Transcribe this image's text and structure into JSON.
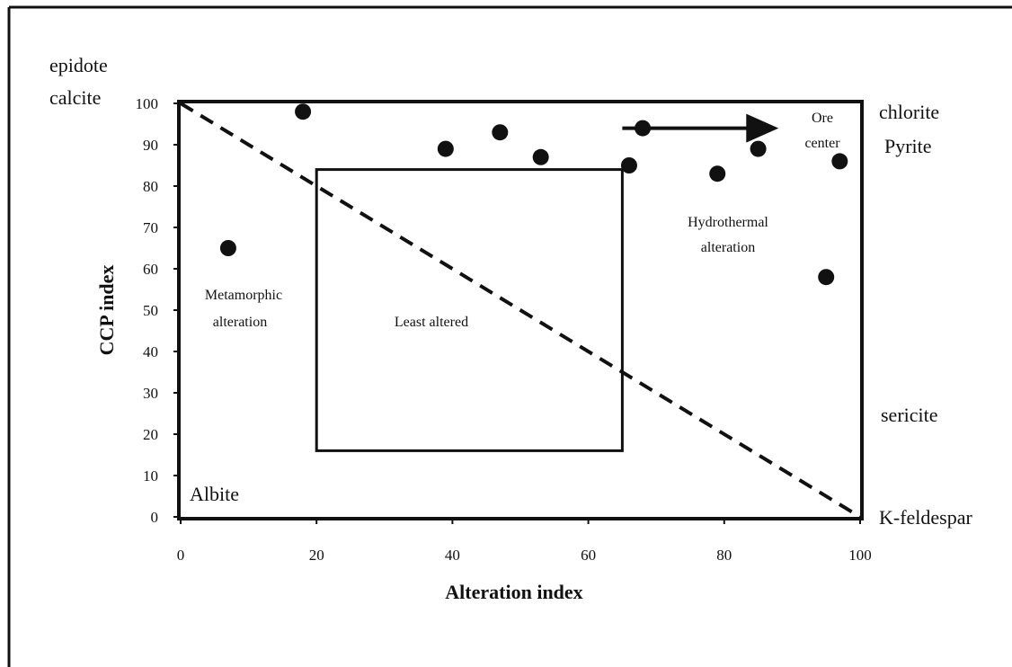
{
  "chart_data": {
    "type": "scatter",
    "xlabel": "Alteration index",
    "ylabel": "CCP index",
    "xlim": [
      0,
      100
    ],
    "ylim": [
      0,
      100
    ],
    "x_ticks": [
      "0",
      "20",
      "40",
      "60",
      "80",
      "100"
    ],
    "y_ticks": [
      "0",
      "10",
      "20",
      "30",
      "40",
      "50",
      "60",
      "70",
      "80",
      "90",
      "100"
    ],
    "grid": false,
    "points": [
      {
        "x": 7,
        "y": 65
      },
      {
        "x": 18,
        "y": 98
      },
      {
        "x": 39,
        "y": 89
      },
      {
        "x": 47,
        "y": 93
      },
      {
        "x": 53,
        "y": 87
      },
      {
        "x": 66,
        "y": 85
      },
      {
        "x": 68,
        "y": 94
      },
      {
        "x": 79,
        "y": 83
      },
      {
        "x": 85,
        "y": 89
      },
      {
        "x": 95,
        "y": 58
      },
      {
        "x": 97,
        "y": 86
      }
    ],
    "least_altered_box": {
      "x": [
        20,
        65
      ],
      "y": [
        16,
        84
      ]
    },
    "trend_line": {
      "from": [
        0,
        100
      ],
      "to": [
        100,
        0
      ],
      "style": "dashed"
    },
    "arrow": {
      "from": [
        65,
        94
      ],
      "to": [
        88,
        94
      ]
    },
    "corner_labels": {
      "top_left": [
        "epidote",
        "calcite"
      ],
      "top_right": [
        "chlorite",
        "Pyrite"
      ],
      "mid_right": "sericite",
      "bottom_left": "Albite",
      "bottom_right": "K-feldespar"
    },
    "annotations": {
      "metamorphic": [
        "Metamorphic",
        "alteration"
      ],
      "least_altered": "Least altered",
      "hydrothermal": [
        "Hydrothermal",
        "alteration"
      ],
      "ore_center": [
        "Ore",
        "center"
      ]
    }
  }
}
